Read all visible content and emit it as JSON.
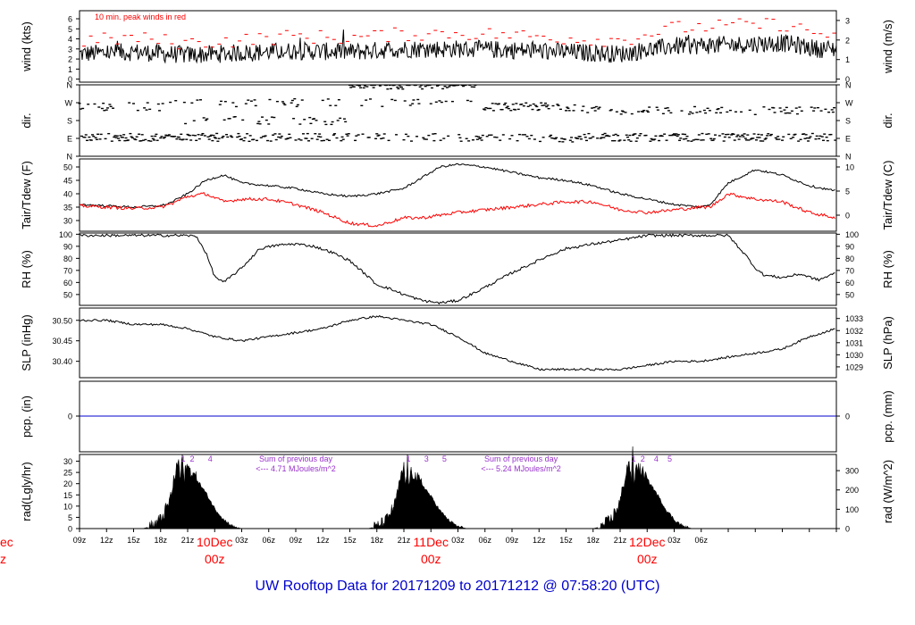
{
  "title": "UW Rooftop Data for 20171209  to  20171212 @ 07:58:20  (UTC)",
  "colors": {
    "accent": "#ff0000",
    "precip": "#0000cc",
    "rad_note": "#9933cc",
    "title": "#0000cc"
  },
  "chart_data": [
    {
      "type": "line",
      "name": "wind",
      "ylabel": "wind (kts)",
      "ylabel_right": "wind (m/s)",
      "annotation": "10 min. peak winds in red",
      "yticks": [
        "0",
        "1",
        "2",
        "3",
        "4",
        "5",
        "6"
      ],
      "yticks_right": [
        "0",
        "1",
        "2",
        "3"
      ],
      "ylim": [
        -0.3,
        6.8
      ],
      "series": [
        {
          "values_description_hours": [
            0,
            6,
            12,
            18,
            24,
            30,
            36,
            42,
            48,
            54,
            60,
            66,
            72,
            78,
            82
          ],
          "values": [
            2.5,
            2.7,
            2.4,
            2.6,
            2.8,
            2.7,
            3.0,
            3.0,
            2.9,
            2.7,
            2.5,
            3.3,
            3.4,
            3.6,
            3.0
          ]
        }
      ],
      "peaks": [
        3.5,
        3.8,
        3.3,
        3.6,
        4.0,
        3.8,
        4.2,
        4.3,
        4.1,
        3.8,
        3.6,
        4.8,
        5.0,
        5.2,
        4.2
      ]
    },
    {
      "type": "scatter",
      "name": "dir",
      "ylabel": "dir.",
      "ylabel_right": "dir.",
      "yticks": [
        "N",
        "E",
        "S",
        "W",
        "N"
      ]
    },
    {
      "type": "line",
      "name": "temp",
      "ylabel": "Tair/Tdew (F)",
      "ylabel_right": "Tair/Tdew (C)",
      "yticks": [
        "30",
        "35",
        "40",
        "45",
        "50"
      ],
      "yticks_right": [
        "0",
        "5",
        "10"
      ],
      "ylim": [
        26,
        53
      ],
      "x_hours": [
        0,
        3,
        6,
        9,
        10,
        12,
        14,
        16,
        18,
        21,
        24,
        27,
        30,
        33,
        36,
        38,
        40,
        42,
        45,
        48,
        51,
        54,
        57,
        60,
        63,
        66,
        69,
        70,
        72,
        75,
        78,
        81,
        84
      ],
      "series": [
        {
          "values": [
            36,
            35.5,
            35,
            35.5,
            36.5,
            40,
            45,
            47,
            44,
            43,
            42,
            40,
            39,
            40,
            42,
            46,
            50,
            51,
            50,
            48,
            46,
            45,
            43,
            40,
            38,
            36,
            35,
            36,
            44,
            49,
            47,
            43,
            41
          ]
        },
        {
          "values": [
            35.5,
            35,
            34.5,
            35,
            36,
            39,
            40,
            37,
            38,
            38,
            36,
            33,
            29,
            28,
            31,
            31,
            32,
            33,
            34,
            35,
            36,
            37,
            37,
            34,
            33,
            34,
            35,
            35,
            40,
            38,
            37,
            33,
            31
          ]
        }
      ]
    },
    {
      "type": "line",
      "name": "rh",
      "ylabel": "RH (%)",
      "ylabel_right": "RH (%)",
      "yticks": [
        "50",
        "60",
        "70",
        "80",
        "90",
        "100"
      ],
      "ylim": [
        41,
        101
      ],
      "x_hours": [
        0,
        6,
        12,
        13,
        14,
        15,
        16,
        18,
        20,
        22,
        24,
        26,
        28,
        30,
        32,
        33,
        34,
        36,
        38,
        40,
        42,
        44,
        46,
        48,
        50,
        52,
        54,
        57,
        60,
        63,
        66,
        69,
        72,
        74,
        75,
        76,
        78,
        80,
        82,
        84
      ],
      "series": [
        {
          "values": [
            99,
            99,
            99,
            98,
            85,
            65,
            60,
            72,
            88,
            91,
            92,
            90,
            85,
            78,
            65,
            58,
            56,
            50,
            45,
            43,
            45,
            52,
            60,
            68,
            75,
            82,
            88,
            92,
            95,
            99,
            99,
            99,
            99,
            82,
            72,
            66,
            64,
            67,
            62,
            68
          ]
        }
      ]
    },
    {
      "type": "line",
      "name": "pressure",
      "ylabel": "SLP (inHg)",
      "ylabel_right": "SLP (hPa)",
      "yticks": [
        "30.40",
        "30.45",
        "30.50"
      ],
      "yticks_right": [
        "1029",
        "1030",
        "1031",
        "1032",
        "1033"
      ],
      "ylim": [
        30.36,
        30.53
      ],
      "x_hours": [
        0,
        3,
        6,
        9,
        12,
        15,
        18,
        21,
        24,
        27,
        30,
        33,
        36,
        39,
        42,
        45,
        48,
        51,
        54,
        57,
        60,
        63,
        66,
        69,
        72,
        75,
        78,
        81,
        84
      ],
      "series": [
        {
          "values": [
            30.5,
            30.5,
            30.49,
            30.49,
            30.48,
            30.46,
            30.45,
            30.46,
            30.47,
            30.48,
            30.5,
            30.51,
            30.5,
            30.49,
            30.46,
            30.42,
            30.4,
            30.38,
            30.38,
            30.38,
            30.38,
            30.39,
            30.4,
            30.4,
            30.41,
            30.42,
            30.43,
            30.46,
            30.48
          ]
        }
      ]
    },
    {
      "type": "line",
      "name": "precip",
      "ylabel": "pcp. (in)",
      "ylabel_right": "pcp. (mm)",
      "yticks": [
        "0"
      ],
      "yticks_right": [
        "0"
      ],
      "series": [
        {
          "values": [
            0,
            0
          ]
        }
      ]
    },
    {
      "type": "area",
      "name": "radiation",
      "ylabel": "rad(Lgly/hr)",
      "ylabel_right": "rad (W/m^2)",
      "yticks": [
        "0",
        "5",
        "10",
        "15",
        "20",
        "25",
        "30"
      ],
      "yticks_right": [
        "0",
        "100",
        "200",
        "300"
      ],
      "ylim": [
        0,
        33
      ],
      "x_hours": [
        0,
        7,
        8,
        9,
        10,
        10.5,
        11,
        11.2,
        11.4,
        11.6,
        11.8,
        12,
        12.5,
        13,
        14,
        15,
        16,
        17,
        18,
        19
      ],
      "series": [
        {
          "values": [
            0,
            0,
            1,
            4,
            12,
            22,
            31,
            20,
            34,
            18,
            30,
            27,
            25,
            22,
            16,
            9,
            4,
            1,
            0,
            0
          ]
        }
      ],
      "annotations": [
        {
          "text": "1",
          "at_hours": 11.5
        },
        {
          "text": "2",
          "at_hours": 12.5
        },
        {
          "text": "4",
          "at_hours": 14.5
        },
        {
          "text": "Sum of previous day",
          "at_hours": 24
        },
        {
          "text": "<--- 4.71 MJoules/m^2",
          "at_hours": 24
        },
        {
          "text": "1",
          "at_hours": 36.5
        },
        {
          "text": "3",
          "at_hours": 38.5
        },
        {
          "text": "5",
          "at_hours": 40.5
        },
        {
          "text": "Sum of previous day",
          "at_hours": 49
        },
        {
          "text": "<--- 5.24 MJoules/m^2",
          "at_hours": 49
        },
        {
          "text": "1",
          "at_hours": 61.5
        },
        {
          "text": "2",
          "at_hours": 62.5
        },
        {
          "text": "4",
          "at_hours": 64
        },
        {
          "text": "5",
          "at_hours": 65.5
        }
      ],
      "x_tick_labels": [
        "09z",
        "12z",
        "15z",
        "18z",
        "21z",
        "03z",
        "06z",
        "09z",
        "12z",
        "15z",
        "18z",
        "21z",
        "03z",
        "06z",
        "09z",
        "12z",
        "15z",
        "18z",
        "21z",
        "03z",
        "06z"
      ],
      "day_labels": [
        {
          "date": "10Dec",
          "time": "00z"
        },
        {
          "date": "11Dec",
          "time": "00z"
        },
        {
          "date": "12Dec",
          "time": "00z"
        }
      ],
      "left_clip_labels": [
        "ec",
        "z"
      ]
    }
  ]
}
